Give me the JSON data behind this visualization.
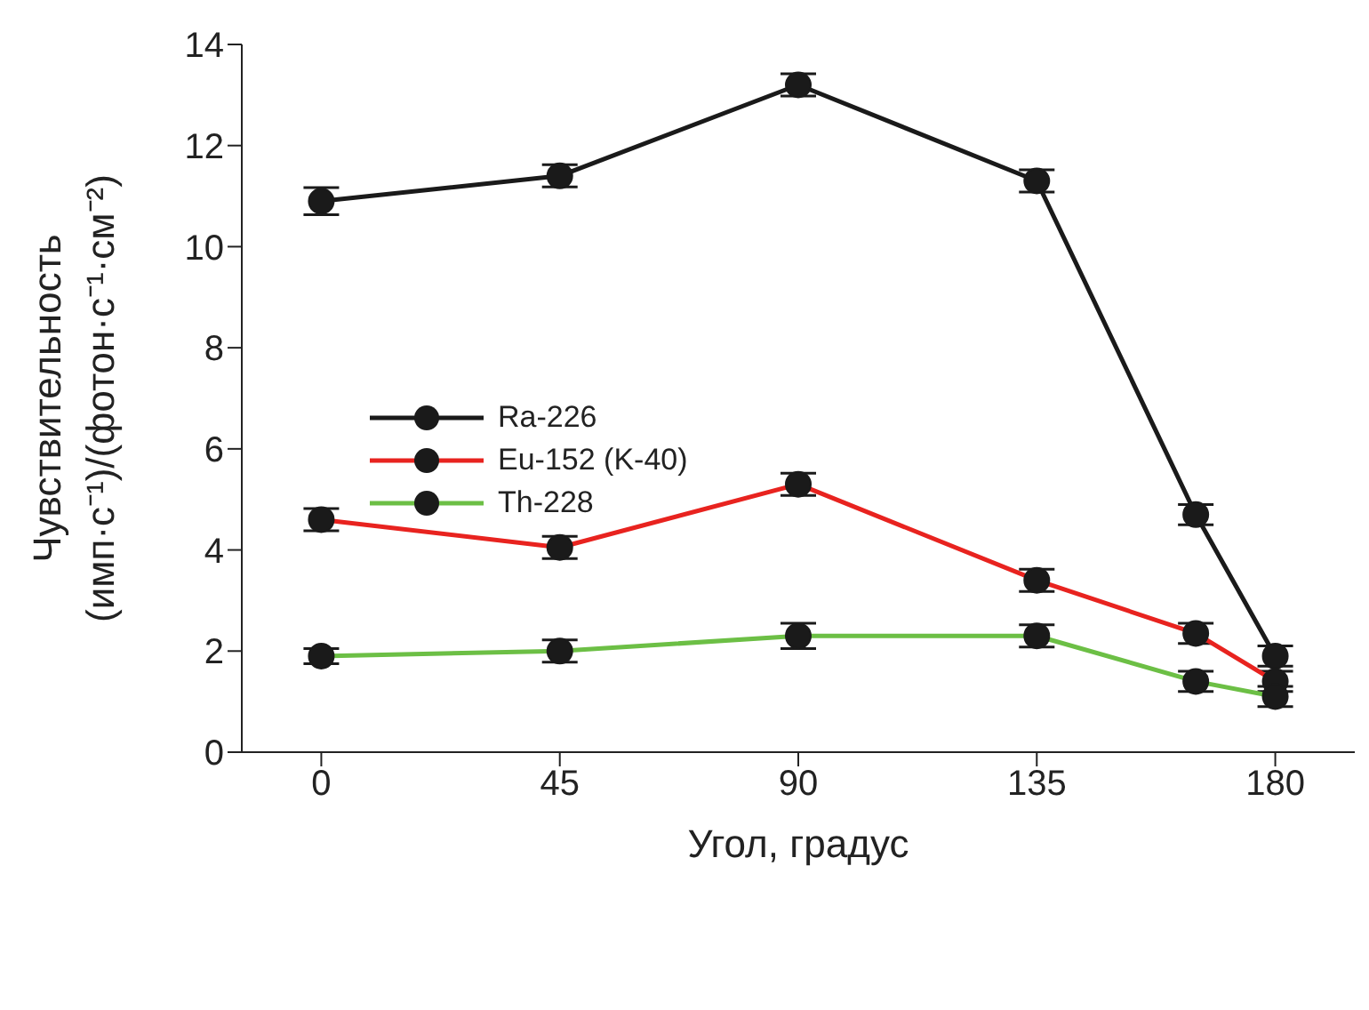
{
  "chart_data": {
    "type": "line",
    "x": [
      0,
      45,
      90,
      135,
      165,
      180
    ],
    "series": [
      {
        "name": "Ra-226",
        "color": "#1a1a1a",
        "values": [
          10.9,
          11.4,
          13.2,
          11.3,
          4.7,
          1.9
        ],
        "errors": [
          0.27,
          0.22,
          0.22,
          0.22,
          0.2,
          0.2
        ]
      },
      {
        "name": "Eu-152 (K-40)",
        "color": "#e8231f",
        "values": [
          4.6,
          4.05,
          5.3,
          3.4,
          2.35,
          1.4
        ],
        "errors": [
          0.22,
          0.22,
          0.22,
          0.22,
          0.2,
          0.2
        ]
      },
      {
        "name": "Th-228",
        "color": "#6cbf45",
        "values": [
          1.9,
          2.0,
          2.3,
          2.3,
          1.4,
          1.1
        ],
        "errors": [
          0.15,
          0.22,
          0.25,
          0.22,
          0.2,
          0.2
        ]
      }
    ],
    "xlabel": "Угол, градус",
    "ylabel": "Чувствительность\n(имп·с⁻¹)/(фотон·с⁻¹·см⁻²)",
    "xlim": [
      -15,
      195
    ],
    "xticks": [
      0,
      45,
      90,
      135,
      180
    ],
    "ylim": [
      0,
      14
    ],
    "yticks": [
      0,
      2,
      4,
      6,
      8,
      10,
      12,
      14
    ],
    "grid": false,
    "legend": "center left",
    "marker": "circle",
    "line_style": "solid"
  }
}
